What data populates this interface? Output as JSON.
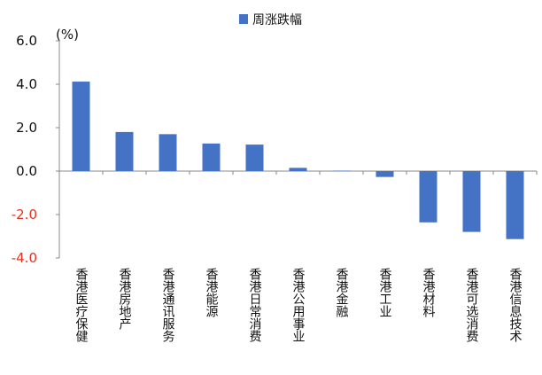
{
  "chart_data": {
    "type": "bar",
    "unit_label": "(%)",
    "categories": [
      "香港医疗保健",
      "香港房地产",
      "香港通讯服务",
      "香港能源",
      "香港日常消费",
      "香港公用事业",
      "香港金融",
      "香港工业",
      "香港材料",
      "香港可选消费",
      "香港信息技术"
    ],
    "series": [
      {
        "name": "周涨跌幅",
        "color": "#4472C4",
        "values": [
          4.12,
          1.8,
          1.7,
          1.27,
          1.22,
          0.15,
          0.02,
          -0.27,
          -2.36,
          -2.8,
          -3.13
        ]
      }
    ],
    "y_ticks": [
      "6.0",
      "4.0",
      "2.0",
      "0.0",
      "-2.0",
      "-4.0"
    ],
    "ylim": [
      -4,
      6
    ],
    "grid": false,
    "legend_position": "top-center",
    "colors": {
      "positive_tick": "#111111",
      "negative_tick": "#E8301C",
      "axis": "#888888"
    }
  }
}
